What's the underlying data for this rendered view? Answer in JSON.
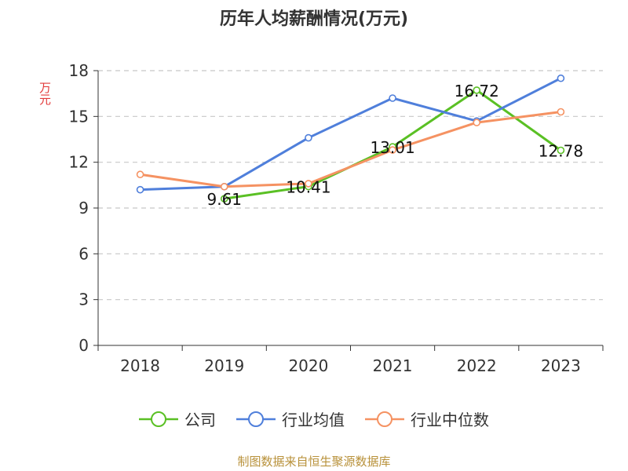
{
  "chart_data": {
    "type": "line",
    "title": "历年人均薪酬情况(万元)",
    "ylabel": "万元",
    "xlabel": "",
    "x": [
      "2018",
      "2019",
      "2020",
      "2021",
      "2022",
      "2023"
    ],
    "ylim": [
      0,
      18
    ],
    "yticks": [
      0,
      3,
      6,
      9,
      12,
      15,
      18
    ],
    "grid": true,
    "legend_position": "bottom",
    "series": [
      {
        "name": "公司",
        "color": "#5ac024",
        "values": [
          null,
          9.61,
          10.41,
          13.01,
          16.72,
          12.78
        ],
        "labels": [
          "",
          "9.61",
          "10.41",
          "13.01",
          "16.72",
          "12.78"
        ]
      },
      {
        "name": "行业均值",
        "color": "#4f7fdb",
        "values": [
          10.2,
          10.4,
          13.6,
          16.2,
          14.7,
          17.5
        ]
      },
      {
        "name": "行业中位数",
        "color": "#f59262",
        "values": [
          11.2,
          10.4,
          10.6,
          12.8,
          14.6,
          15.3
        ]
      }
    ]
  },
  "footer": "制图数据来自恒生聚源数据库"
}
